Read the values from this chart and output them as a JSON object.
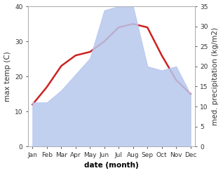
{
  "months": [
    "Jan",
    "Feb",
    "Mar",
    "Apr",
    "May",
    "Jun",
    "Jul",
    "Aug",
    "Sep",
    "Oct",
    "Nov",
    "Dec"
  ],
  "temperature": [
    12,
    17,
    23,
    26,
    27,
    30,
    34,
    35,
    34,
    26,
    19,
    15
  ],
  "precipitation": [
    11,
    11,
    14,
    18,
    22,
    34,
    35,
    35,
    20,
    19,
    20,
    13
  ],
  "temp_color": "#cc2222",
  "precip_color": "#b8c8ee",
  "precip_alpha": 0.85,
  "temp_ylim": [
    0,
    40
  ],
  "precip_ylim": [
    0,
    35
  ],
  "temp_yticks": [
    0,
    10,
    20,
    30,
    40
  ],
  "precip_yticks": [
    0,
    5,
    10,
    15,
    20,
    25,
    30,
    35
  ],
  "xlabel": "date (month)",
  "ylabel_left": "max temp (C)",
  "ylabel_right": "med. precipitation (kg/m2)",
  "bg_color": "#ffffff",
  "label_fontsize": 7.5,
  "tick_fontsize": 6.5,
  "line_width": 1.8
}
